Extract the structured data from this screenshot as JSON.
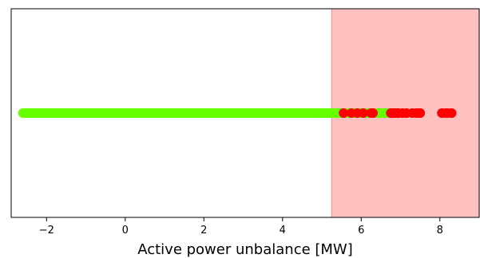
{
  "chart_data": {
    "type": "scatter",
    "title": "",
    "xlabel": "Active power unbalance [MW]",
    "ylabel": "",
    "xlim": [
      -2.9,
      9.0
    ],
    "ylim": [
      -1,
      1
    ],
    "xticks": [
      -2,
      0,
      2,
      4,
      6,
      8
    ],
    "xtick_labels": [
      "−2",
      "0",
      "2",
      "4",
      "6",
      "8"
    ],
    "show_yticks": false,
    "grid": false,
    "shaded_region": {
      "x_start": 5.25,
      "x_end": 9.0,
      "color": "#ffc0c0",
      "edge_color": "#f28d8d"
    },
    "series": [
      {
        "color": "#66ff00",
        "y": 0,
        "x_range": [
          -2.6,
          6.9
        ],
        "x": [
          5.4,
          5.5,
          5.6,
          5.7,
          5.8,
          6.1,
          6.2,
          6.3,
          6.5,
          6.6,
          6.75
        ]
      },
      {
        "color": "#ff0000",
        "y": 0,
        "x": [
          5.55,
          5.75,
          5.9,
          6.05,
          6.25,
          6.3,
          6.75,
          6.8,
          6.85,
          6.9,
          6.95,
          7.05,
          7.15,
          7.3,
          7.4,
          7.45,
          7.5,
          8.05,
          8.15,
          8.2,
          8.3
        ]
      }
    ]
  }
}
